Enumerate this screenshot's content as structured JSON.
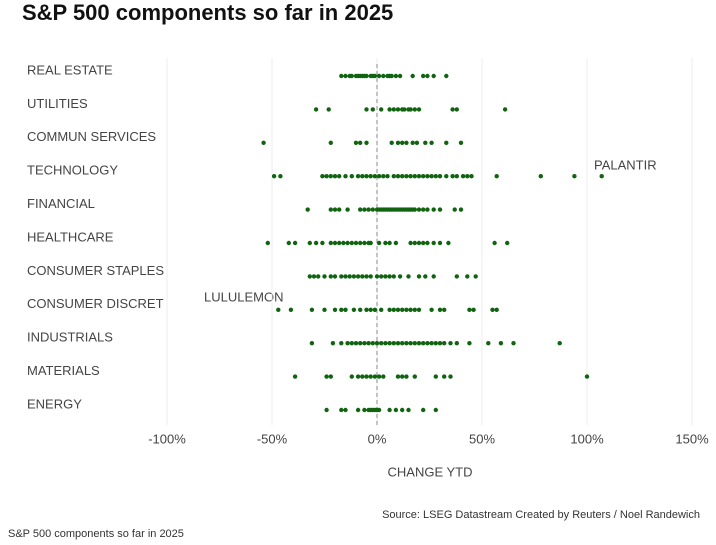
{
  "chart_data": {
    "type": "strip",
    "title": "S&P 500 components so far in 2025",
    "x_label": "CHANGE YTD",
    "source": "Source: LSEG Datastream  Created by Reuters / Noel Randewich",
    "caption": "S&P 500 components so far in 2025",
    "annotations": [
      "PALANTIR",
      "LULULEMON"
    ],
    "color": "#106410",
    "categories": [
      "REAL ESTATE",
      "UTILITIES",
      "COMMUN SERVICES",
      "TECHNOLOGY",
      "FINANCIAL",
      "HEALTHCARE",
      "CONSUMER STAPLES",
      "CONSUMER DISCRET",
      "INDUSTRIALS",
      "MATERIALS",
      "ENERGY"
    ],
    "values": [
      [
        -17,
        -15,
        -13,
        -12,
        -10,
        -9,
        -8,
        -7,
        -6,
        -5,
        -3,
        -2,
        -1,
        1,
        3,
        5,
        6,
        7,
        9,
        11,
        17,
        22,
        24,
        27,
        33
      ],
      [
        -29,
        -23,
        -5,
        -2,
        2,
        6,
        8,
        10,
        12,
        13,
        15,
        16,
        18,
        20,
        36,
        38,
        61
      ],
      [
        -54,
        -22,
        -10,
        -8,
        -5,
        7,
        10,
        12,
        14,
        17,
        19,
        23,
        26,
        33,
        40
      ],
      [
        -49,
        -46,
        -26,
        -24,
        -22,
        -20,
        -18,
        -15,
        -12,
        -9,
        -7,
        -5,
        -3,
        -1,
        1,
        3,
        5,
        8,
        10,
        12,
        14,
        16,
        18,
        20,
        22,
        24,
        26,
        28,
        30,
        33,
        36,
        38,
        41,
        43,
        45,
        57,
        78,
        94,
        107
      ],
      [
        -33,
        -22,
        -20,
        -18,
        -14,
        -8,
        -6,
        -4,
        -2,
        0,
        1,
        2,
        3,
        4,
        5,
        6,
        7,
        8,
        9,
        10,
        11,
        12,
        13,
        14,
        15,
        16,
        17,
        18,
        20,
        22,
        24,
        27,
        30,
        37,
        40
      ],
      [
        -52,
        -42,
        -39,
        -32,
        -29,
        -26,
        -22,
        -20,
        -18,
        -16,
        -14,
        -12,
        -10,
        -8,
        -6,
        -4,
        -3,
        1,
        4,
        6,
        9,
        16,
        18,
        20,
        22,
        24,
        27,
        30,
        34,
        56,
        62
      ],
      [
        -32,
        -30,
        -28,
        -25,
        -22,
        -20,
        -17,
        -15,
        -13,
        -11,
        -9,
        -7,
        -5,
        -3,
        0,
        2,
        4,
        6,
        8,
        11,
        15,
        20,
        23,
        27,
        38,
        43,
        47
      ],
      [
        -47,
        -41,
        -31,
        -25,
        -20,
        -17,
        -15,
        -11,
        -8,
        -5,
        -3,
        -1,
        2,
        6,
        8,
        10,
        12,
        14,
        16,
        18,
        20,
        26,
        30,
        32,
        44,
        46,
        55,
        57
      ],
      [
        -31,
        -21,
        -17,
        -14,
        -12,
        -10,
        -8,
        -6,
        -4,
        -2,
        0,
        2,
        4,
        6,
        8,
        10,
        12,
        14,
        16,
        18,
        20,
        22,
        24,
        26,
        28,
        30,
        32,
        35,
        38,
        44,
        53,
        59,
        65,
        87
      ],
      [
        -39,
        -24,
        -22,
        -12,
        -9,
        -7,
        -5,
        -3,
        -1,
        1,
        3,
        10,
        12,
        14,
        18,
        28,
        32,
        35,
        100
      ],
      [
        -24,
        -17,
        -15,
        -9,
        -6,
        -4,
        -3,
        -2,
        -1,
        0,
        1,
        6,
        9,
        12,
        15,
        22,
        28
      ]
    ],
    "xlim": [
      -100,
      150
    ],
    "xticks": [
      {
        "value": -100,
        "label": "-100%"
      },
      {
        "value": -50,
        "label": "-50%"
      },
      {
        "value": 0,
        "label": "0%"
      },
      {
        "value": 50,
        "label": "50%"
      },
      {
        "value": 100,
        "label": "100%"
      },
      {
        "value": 150,
        "label": "150%"
      }
    ],
    "grid": true,
    "zero_line": true
  }
}
